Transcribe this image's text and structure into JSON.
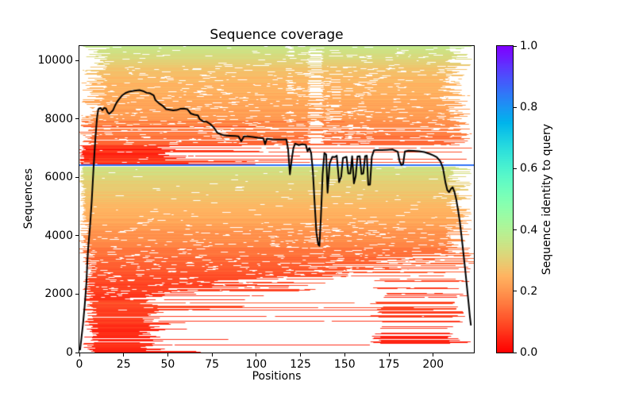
{
  "title": "Sequence coverage",
  "plot": {
    "xlabel": "Positions",
    "ylabel": "Sequences",
    "x_tick_labels": [
      "0",
      "25",
      "50",
      "75",
      "100",
      "125",
      "150",
      "175",
      "200"
    ],
    "y_tick_labels": [
      "0",
      "2000",
      "4000",
      "6000",
      "8000",
      "10000"
    ]
  },
  "colorbar": {
    "label": "Sequence identity to query",
    "tick_labels": [
      "0.0",
      "0.2",
      "0.4",
      "0.6",
      "0.8",
      "1.0"
    ],
    "colormap": "rainbow_r"
  },
  "colors": {
    "coverage_line": "#000000",
    "query_row_blue": "#3374f8",
    "background": "#ffffff",
    "axis": "#000000"
  },
  "chart_data": {
    "type": "heatmap",
    "title": "Sequence coverage",
    "xlabel": "Positions",
    "ylabel": "Sequences",
    "colorbar_label": "Sequence identity to query",
    "x_range": [
      0,
      223
    ],
    "y_range": [
      0,
      10490
    ],
    "x_ticks": [
      0,
      25,
      50,
      75,
      100,
      125,
      150,
      175,
      200
    ],
    "y_ticks": [
      0,
      2000,
      4000,
      6000,
      8000,
      10000
    ],
    "colorbar_range": [
      0.0,
      1.0
    ],
    "colorbar_ticks": [
      0.0,
      0.2,
      0.4,
      0.6,
      0.8,
      1.0
    ],
    "n_positions": 223,
    "n_sequences": 10490,
    "query_sequence_row": {
      "y": 6400,
      "identity": 0.85,
      "color": "#3374f8"
    },
    "coverage_line": {
      "name": "per-position coverage",
      "color": "#000000",
      "points": [
        [
          0.4,
          100
        ],
        [
          1,
          420
        ],
        [
          2,
          950
        ],
        [
          3,
          1600
        ],
        [
          4,
          2400
        ],
        [
          4.5,
          3100
        ],
        [
          5,
          3600
        ],
        [
          6,
          4300
        ],
        [
          7,
          5200
        ],
        [
          8,
          6300
        ],
        [
          9,
          7300
        ],
        [
          10,
          8050
        ],
        [
          10.7,
          8330
        ],
        [
          12,
          8370
        ],
        [
          13,
          8290
        ],
        [
          14,
          8370
        ],
        [
          15,
          8360
        ],
        [
          16,
          8220
        ],
        [
          17,
          8170
        ],
        [
          18,
          8230
        ],
        [
          19,
          8290
        ],
        [
          20,
          8430
        ],
        [
          21,
          8550
        ],
        [
          22,
          8640
        ],
        [
          24,
          8790
        ],
        [
          26,
          8880
        ],
        [
          28,
          8930
        ],
        [
          31,
          8960
        ],
        [
          34,
          8980
        ],
        [
          36,
          8950
        ],
        [
          38,
          8890
        ],
        [
          40,
          8870
        ],
        [
          42,
          8800
        ],
        [
          43,
          8640
        ],
        [
          45,
          8530
        ],
        [
          47,
          8450
        ],
        [
          49,
          8330
        ],
        [
          51,
          8310
        ],
        [
          53,
          8290
        ],
        [
          55,
          8300
        ],
        [
          57,
          8340
        ],
        [
          59,
          8350
        ],
        [
          61,
          8330
        ],
        [
          63,
          8180
        ],
        [
          65,
          8140
        ],
        [
          67,
          8120
        ],
        [
          68,
          7990
        ],
        [
          70,
          7910
        ],
        [
          72,
          7900
        ],
        [
          74,
          7820
        ],
        [
          76,
          7700
        ],
        [
          78,
          7520
        ],
        [
          80,
          7470
        ],
        [
          82,
          7430
        ],
        [
          85,
          7420
        ],
        [
          88,
          7410
        ],
        [
          90,
          7400
        ],
        [
          91.5,
          7230
        ],
        [
          93,
          7400
        ],
        [
          95,
          7400
        ],
        [
          98,
          7380
        ],
        [
          101,
          7350
        ],
        [
          104,
          7330
        ],
        [
          105,
          7130
        ],
        [
          106,
          7320
        ],
        [
          109,
          7300
        ],
        [
          112,
          7290
        ],
        [
          115,
          7290
        ],
        [
          117,
          7300
        ],
        [
          118,
          6950
        ],
        [
          119,
          6100
        ],
        [
          120,
          6600
        ],
        [
          121,
          7000
        ],
        [
          122,
          7150
        ],
        [
          124,
          7100
        ],
        [
          126,
          7130
        ],
        [
          128,
          7110
        ],
        [
          129,
          6880
        ],
        [
          130,
          7000
        ],
        [
          131,
          6830
        ],
        [
          132,
          6200
        ],
        [
          133,
          5100
        ],
        [
          134,
          4100
        ],
        [
          135,
          3700
        ],
        [
          135.7,
          3650
        ],
        [
          136.5,
          4600
        ],
        [
          137.5,
          6100
        ],
        [
          138.5,
          6830
        ],
        [
          139.5,
          6780
        ],
        [
          140.3,
          5470
        ],
        [
          141.5,
          6480
        ],
        [
          143,
          6700
        ],
        [
          144.5,
          6690
        ],
        [
          145.5,
          6740
        ],
        [
          146.8,
          5830
        ],
        [
          148,
          6020
        ],
        [
          149,
          6660
        ],
        [
          151,
          6700
        ],
        [
          152,
          6130
        ],
        [
          153.2,
          6130
        ],
        [
          154.2,
          6720
        ],
        [
          155.2,
          5790
        ],
        [
          156.2,
          6040
        ],
        [
          157.2,
          6710
        ],
        [
          158.5,
          6720
        ],
        [
          159.5,
          6110
        ],
        [
          160.5,
          6130
        ],
        [
          161.5,
          6720
        ],
        [
          162.5,
          6740
        ],
        [
          163.3,
          5740
        ],
        [
          164.3,
          5750
        ],
        [
          165.3,
          6700
        ],
        [
          166.5,
          6920
        ],
        [
          168,
          6930
        ],
        [
          171,
          6930
        ],
        [
          174,
          6940
        ],
        [
          177,
          6950
        ],
        [
          180,
          6870
        ],
        [
          181,
          6550
        ],
        [
          182,
          6420
        ],
        [
          183,
          6450
        ],
        [
          184,
          6880
        ],
        [
          186,
          6910
        ],
        [
          189,
          6900
        ],
        [
          192,
          6890
        ],
        [
          195,
          6860
        ],
        [
          198,
          6800
        ],
        [
          200,
          6750
        ],
        [
          202,
          6690
        ],
        [
          204,
          6550
        ],
        [
          205.5,
          6320
        ],
        [
          207,
          5800
        ],
        [
          208,
          5560
        ],
        [
          209,
          5490
        ],
        [
          210,
          5600
        ],
        [
          211,
          5660
        ],
        [
          212,
          5500
        ],
        [
          213,
          5250
        ],
        [
          214,
          4900
        ],
        [
          215,
          4500
        ],
        [
          216,
          4000
        ],
        [
          217,
          3450
        ],
        [
          218,
          2900
        ],
        [
          219,
          2300
        ],
        [
          220,
          1700
        ],
        [
          220.8,
          1200
        ],
        [
          221.3,
          950
        ]
      ]
    },
    "msa_identity_bands": [
      {
        "y": [
          0,
          300
        ],
        "identity": [
          0.03,
          0.08
        ],
        "holes": 0.02,
        "stripe_scale": 0,
        "fragments": [
          {
            "prob": 1.0,
            "x0": [
              2,
              10
            ],
            "x1": [
              34,
              50
            ]
          },
          {
            "prob": 0.25,
            "x0": [
              4,
              12
            ],
            "x1": [
              52,
              80
            ]
          },
          {
            "prob": 0.05,
            "x0": [
              3,
              9
            ],
            "x1": [
              120,
              215
            ]
          }
        ]
      },
      {
        "y": [
          300,
          1800
        ],
        "identity": [
          0.04,
          0.1
        ],
        "holes": 0.03,
        "stripe_scale": 0,
        "fragments": [
          {
            "prob": 0.95,
            "x0": [
              2,
              11
            ],
            "x1": [
              33,
              52
            ]
          },
          {
            "prob": 0.15,
            "x0": [
              5,
              14
            ],
            "x1": [
              55,
              105
            ]
          },
          {
            "prob": 0.55,
            "x0": [
              164,
              172
            ],
            "x1": [
              208,
              222
            ]
          },
          {
            "prob": 0.05,
            "x0": [
              3,
              9
            ],
            "x1": [
              140,
              222
            ]
          }
        ]
      },
      {
        "y": [
          1800,
          3400
        ],
        "identity": [
          0.06,
          0.15
        ],
        "holes": 0.1,
        "stripe_scale": 0.3,
        "fragments": [
          {
            "prob": 1.0,
            "x0": [
              2,
              10
            ],
            "x1_grow": [
              55,
              218
            ],
            "x1_noise": 45
          },
          {
            "prob": 0.3,
            "x0": [
              166,
              174
            ],
            "x1": [
              205,
              222
            ]
          }
        ]
      },
      {
        "y": [
          3400,
          4450
        ],
        "identity": [
          0.15,
          0.23
        ],
        "holes": 0.07,
        "stripe_scale": 0.5,
        "fragments": [
          {
            "prob": 1.0,
            "x0": [
              0,
              7
            ],
            "x1": [
              206,
              222
            ]
          }
        ]
      },
      {
        "y": [
          4450,
          5650
        ],
        "identity": [
          0.23,
          0.29
        ],
        "holes": 0.025,
        "stripe_scale": 0.15,
        "fragments": [
          {
            "prob": 1.0,
            "x0": [
              0,
              4
            ],
            "x1": [
              207,
              222
            ]
          }
        ]
      },
      {
        "y": [
          5650,
          6370
        ],
        "identity": [
          0.29,
          0.35
        ],
        "holes": 0.015,
        "stripe_scale": 0.12,
        "fragments": [
          {
            "prob": 1.0,
            "x0": [
              0,
              3
            ],
            "x1": [
              208,
              222
            ]
          }
        ]
      },
      {
        "y": [
          6430,
          7080
        ],
        "identity": [
          0.05,
          0.13
        ],
        "holes": 0.05,
        "stripe_scale": 0.8,
        "fragments": [
          {
            "prob": 0.9,
            "x0": [
              0,
              3
            ],
            "x1": [
              44,
              62
            ],
            "identity": [
              0.02,
              0.08
            ]
          },
          {
            "prob": 0.3,
            "x0": [
              0,
              3
            ],
            "x1": [
              80,
              140
            ],
            "identity": [
              0.04,
              0.1
            ]
          },
          {
            "prob": 0.3,
            "x0": [
              0,
              6
            ],
            "x1": [
              205,
              222
            ],
            "identity": [
              0.06,
              0.14
            ]
          }
        ]
      },
      {
        "y": [
          7080,
          8150
        ],
        "identity": [
          0.13,
          0.21
        ],
        "holes": 0.09,
        "stripe_scale": 1.0,
        "fragments": [
          {
            "prob": 0.85,
            "x0": [
              0,
              9
            ],
            "x1": [
              205,
              222
            ]
          },
          {
            "prob": 0.2,
            "x0": [
              0,
              5
            ],
            "x1": [
              90,
              160
            ],
            "identity": [
              0.08,
              0.16
            ]
          }
        ]
      },
      {
        "y": [
          8150,
          9750
        ],
        "identity": [
          0.21,
          0.28
        ],
        "holes": 0.07,
        "stripe_scale": 1.0,
        "fragments": [
          {
            "prob": 1.0,
            "x0": [
              1,
              16
            ],
            "x1": [
              205,
              222
            ]
          }
        ]
      },
      {
        "y": [
          9750,
          10490
        ],
        "identity": [
          0.28,
          0.37
        ],
        "holes": 0.05,
        "stripe_scale": 1.0,
        "fragments": [
          {
            "prob": 1.0,
            "x0": [
              1,
              18
            ],
            "x1": [
              207,
              222
            ]
          }
        ]
      }
    ],
    "coverage_gap_columns": [
      {
        "x": [
          117.5,
          120.5
        ],
        "p": 0.2
      },
      {
        "x": [
          130,
          137.5
        ],
        "p": 0.45
      },
      {
        "x": [
          139,
          141.5
        ],
        "p": 0.15
      },
      {
        "x": [
          142,
          148
        ],
        "p": 0.22
      },
      {
        "x": [
          151,
          154
        ],
        "p": 0.12
      },
      {
        "x": [
          155,
          157.5
        ],
        "p": 0.1
      },
      {
        "x": [
          158,
          161.5
        ],
        "p": 0.1
      },
      {
        "x": [
          162,
          165.5
        ],
        "p": 0.1
      },
      {
        "x": [
          179,
          184
        ],
        "p": 0.06
      },
      {
        "x": [
          203,
          207
        ],
        "p": 0.06
      }
    ]
  }
}
